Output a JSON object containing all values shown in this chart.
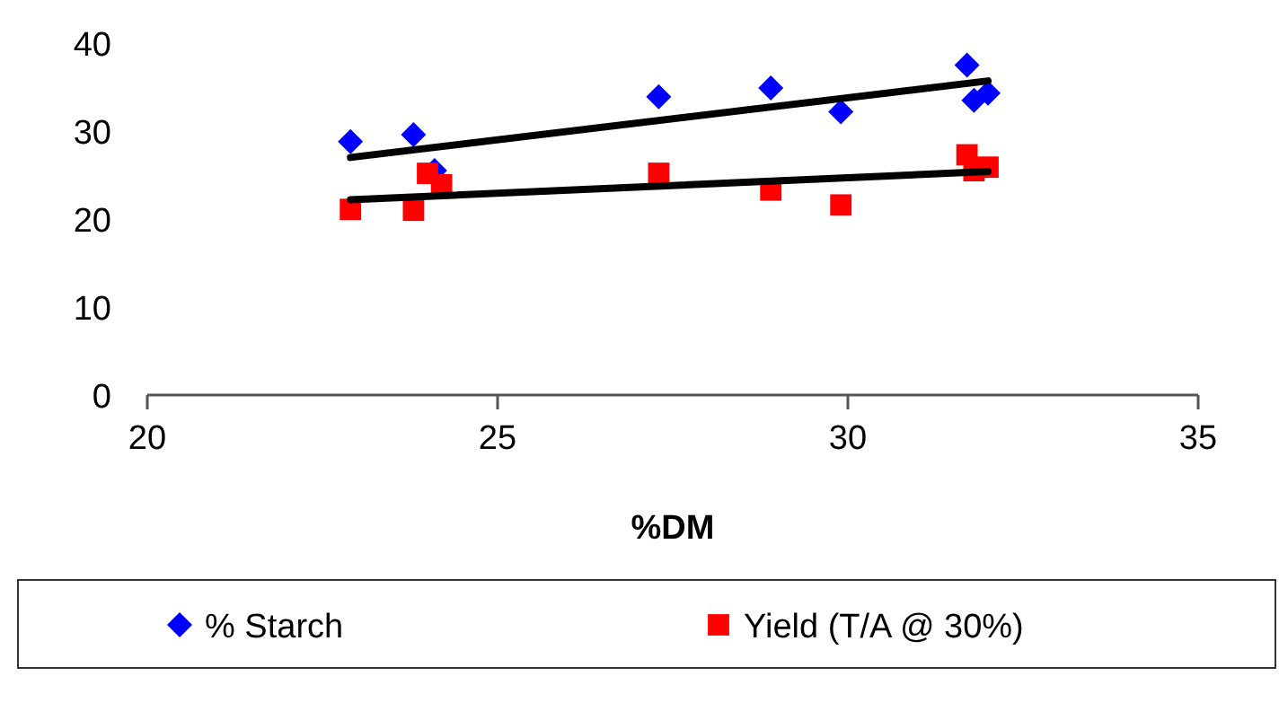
{
  "chart_data": {
    "type": "scatter",
    "xlabel": "%DM",
    "xlim": [
      20,
      35
    ],
    "xticks": [
      20,
      25,
      30,
      35
    ],
    "ylim": [
      0,
      40
    ],
    "yticks": [
      0,
      10,
      20,
      30,
      40
    ],
    "grid": false,
    "legend": "bottom",
    "series": [
      {
        "name": "% Starch",
        "color": "#0000ff",
        "marker": "diamond",
        "x": [
          22.9,
          23.8,
          24.1,
          27.3,
          28.9,
          29.9,
          31.7,
          31.8,
          32.0
        ],
        "values": [
          28.8,
          29.6,
          25.5,
          33.9,
          34.9,
          32.2,
          37.5,
          33.5,
          34.3
        ]
      },
      {
        "name": "Yield (T/A @ 30%)",
        "color": "#ff0000",
        "marker": "square",
        "x": [
          22.9,
          23.8,
          24.0,
          24.2,
          27.3,
          28.9,
          29.9,
          31.7,
          31.8,
          32.0
        ],
        "values": [
          21.1,
          21.0,
          25.2,
          23.9,
          25.2,
          23.3,
          21.6,
          27.3,
          25.5,
          25.9
        ]
      },
      {
        "type": "line",
        "color": "#000000",
        "marker": "none",
        "x": [
          22.9,
          32.0
        ],
        "values": [
          27.0,
          35.7
        ]
      },
      {
        "type": "line",
        "color": "#000000",
        "marker": "none",
        "x": [
          22.9,
          32.0
        ],
        "values": [
          22.2,
          25.4
        ]
      }
    ]
  }
}
